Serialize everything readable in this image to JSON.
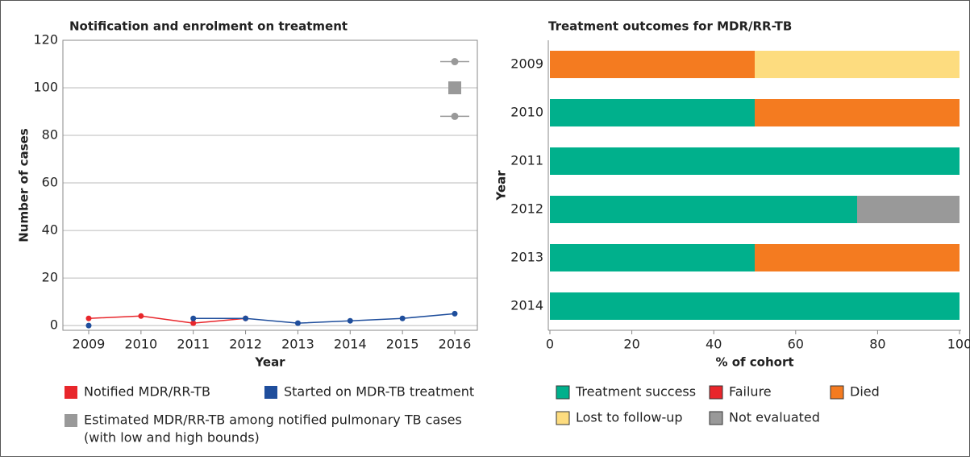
{
  "chart_data": [
    {
      "type": "line",
      "title": "Notification and enrolment on treatment",
      "xlabel": "Year",
      "ylabel": "Number of cases",
      "categories": [
        "2009",
        "2010",
        "2011",
        "2012",
        "2013",
        "2014",
        "2015",
        "2016"
      ],
      "ylim": [
        -2,
        120
      ],
      "yticks": [
        0,
        20,
        40,
        60,
        80,
        100,
        120
      ],
      "grid": true,
      "series": [
        {
          "name": "Notified MDR/RR-TB",
          "color": "#e8262b",
          "values": [
            3,
            4,
            1,
            3,
            null,
            null,
            null,
            null
          ]
        },
        {
          "name": "Started on MDR-TB treatment",
          "color": "#1f4e9c",
          "values": [
            0,
            null,
            3,
            3,
            1,
            2,
            3,
            5
          ]
        },
        {
          "name": "Estimated MDR/RR-TB among notified pulmonary TB cases",
          "note": "(with low and high bounds)",
          "color": "#999999",
          "values": [
            null,
            null,
            null,
            null,
            null,
            null,
            null,
            100
          ],
          "low": [
            null,
            null,
            null,
            null,
            null,
            null,
            null,
            88
          ],
          "high": [
            null,
            null,
            null,
            null,
            null,
            null,
            null,
            111
          ]
        }
      ]
    },
    {
      "type": "barh_stacked",
      "title": "Treatment outcomes for MDR/RR-TB",
      "xlabel": "% of cohort",
      "ylabel": "Year",
      "categories": [
        "2009",
        "2010",
        "2011",
        "2012",
        "2013",
        "2014"
      ],
      "xlim": [
        0,
        100
      ],
      "xticks": [
        0,
        20,
        40,
        60,
        80,
        100
      ],
      "series": [
        {
          "name": "Treatment success",
          "color": "#00b08c",
          "values": [
            0,
            50,
            100,
            75,
            50,
            100
          ]
        },
        {
          "name": "Failure",
          "color": "#e8262b",
          "values": [
            0,
            0,
            0,
            0,
            0,
            0
          ]
        },
        {
          "name": "Died",
          "color": "#f47b20",
          "values": [
            50,
            50,
            0,
            0,
            50,
            0
          ]
        },
        {
          "name": "Lost to follow-up",
          "color": "#fddc7f",
          "values": [
            50,
            0,
            0,
            0,
            0,
            0
          ]
        },
        {
          "name": "Not evaluated",
          "color": "#999999",
          "values": [
            0,
            0,
            0,
            25,
            0,
            0
          ]
        }
      ]
    }
  ]
}
